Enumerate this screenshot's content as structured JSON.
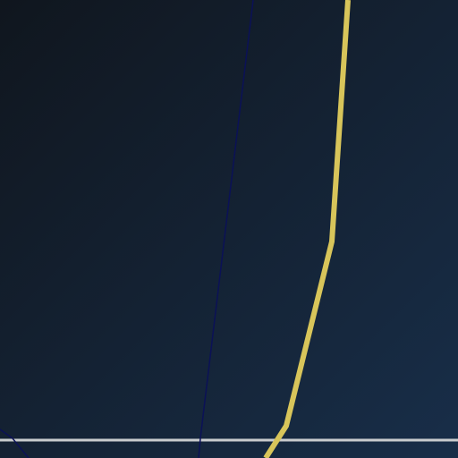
{
  "map": {
    "background_colors": [
      "#10161e",
      "#182e49"
    ],
    "routes": [
      {
        "id": "yellow-route",
        "color": "#d8c55a"
      },
      {
        "id": "blue-route",
        "color": "#0b1157"
      },
      {
        "id": "white-route",
        "color": "#c9ccce"
      },
      {
        "id": "dark-blue-route",
        "color": "#0b1157"
      }
    ]
  }
}
